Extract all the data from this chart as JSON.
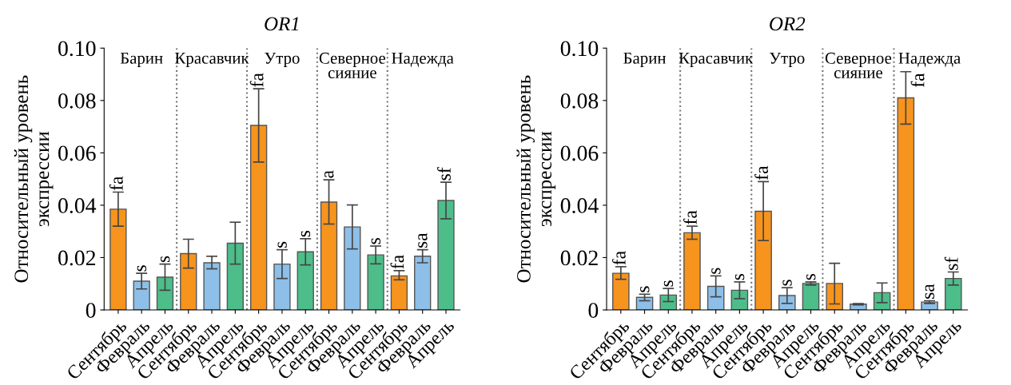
{
  "chart_data": [
    {
      "type": "bar",
      "title": "OR1",
      "ylabel": "Относительный уровень\nэкспрессии",
      "categories": [
        "Сентябрь",
        "Февраль",
        "Апрель",
        "Сентябрь",
        "Февраль",
        "Апрель",
        "Сентябрь",
        "Февраль",
        "Апрель",
        "Сентябрь",
        "Февраль",
        "Апрель",
        "Сентябрь",
        "Февраль",
        "Апрель"
      ],
      "values": [
        0.0385,
        0.011,
        0.0125,
        0.0215,
        0.018,
        0.0255,
        0.0705,
        0.0175,
        0.0222,
        0.0412,
        0.0317,
        0.021,
        0.013,
        0.0205,
        0.0418
      ],
      "colors": [
        "#f7941d",
        "#8dbfe8",
        "#4dbd8a",
        "#f7941d",
        "#8dbfe8",
        "#4dbd8a",
        "#f7941d",
        "#8dbfe8",
        "#4dbd8a",
        "#f7941d",
        "#8dbfe8",
        "#4dbd8a",
        "#f7941d",
        "#8dbfe8",
        "#4dbd8a"
      ],
      "errors": [
        [
          0.032,
          0.045
        ],
        [
          0.008,
          0.014
        ],
        [
          0.0075,
          0.0175
        ],
        [
          0.016,
          0.027
        ],
        [
          0.0157,
          0.0205
        ],
        [
          0.0175,
          0.0335
        ],
        [
          0.0565,
          0.0845
        ],
        [
          0.012,
          0.023
        ],
        [
          0.0172,
          0.0272
        ],
        [
          0.0328,
          0.0497
        ],
        [
          0.0233,
          0.0401
        ],
        [
          0.0176,
          0.0244
        ],
        [
          0.0115,
          0.015
        ],
        [
          0.018,
          0.023
        ],
        [
          0.0348,
          0.0488
        ]
      ],
      "value_labels": [
        "fa",
        "s",
        "s",
        null,
        null,
        null,
        "fa",
        "s",
        "s",
        "a",
        null,
        "s",
        "fa",
        "sa",
        "sf"
      ],
      "annotations": [
        "Барин",
        "Красавчик",
        "Утро",
        "Северное\nсияние",
        "Надежда"
      ],
      "ylim": [
        0,
        0.1
      ],
      "yticks": [
        0,
        0.02,
        0.04,
        0.06,
        0.08,
        {
          "value": 0.1,
          "label": "0.10"
        }
      ],
      "grid": false
    },
    {
      "type": "bar",
      "title": "OR2",
      "ylabel": "Относительный уровень\nэкспрессии",
      "categories": [
        "Сентябрь",
        "Февраль",
        "Апрель",
        "Сентябрь",
        "Февраль",
        "Апрель",
        "Сентябрь",
        "Февраль",
        "Апрель",
        "Сентябрь",
        "Февраль",
        "Апрель",
        "Сентябрь",
        "Февраль",
        "Апрель"
      ],
      "values": [
        0.014,
        0.0048,
        0.0057,
        0.0295,
        0.009,
        0.0075,
        0.0377,
        0.0055,
        0.0101,
        0.0101,
        0.0022,
        0.0066,
        0.081,
        0.003,
        0.012
      ],
      "colors": [
        "#f7941d",
        "#8dbfe8",
        "#4dbd8a",
        "#f7941d",
        "#8dbfe8",
        "#4dbd8a",
        "#f7941d",
        "#8dbfe8",
        "#4dbd8a",
        "#f7941d",
        "#8dbfe8",
        "#4dbd8a",
        "#f7941d",
        "#8dbfe8",
        "#4dbd8a"
      ],
      "errors": [
        [
          0.0117,
          0.0165
        ],
        [
          0.0035,
          0.006
        ],
        [
          0.0032,
          0.0082
        ],
        [
          0.027,
          0.032
        ],
        [
          0.005,
          0.013
        ],
        [
          0.0043,
          0.0107
        ],
        [
          0.0265,
          0.049
        ],
        [
          0.0025,
          0.0085
        ],
        [
          0.0095,
          0.0107
        ],
        [
          0.0023,
          0.0178
        ],
        [
          0.0019,
          0.0024
        ],
        [
          0.0028,
          0.0103
        ],
        [
          0.071,
          0.091
        ],
        [
          0.0025,
          0.0035
        ],
        [
          0.0095,
          0.0145
        ]
      ],
      "value_labels": [
        "fa",
        "s",
        "s",
        "fa",
        "s",
        "s",
        "fa",
        "s",
        "s",
        null,
        null,
        null,
        "fa",
        "sa",
        "sf"
      ],
      "annotations": [
        "Барин",
        "Красавчик",
        "Утро",
        "Северное\nсияние",
        "Надежда"
      ],
      "ylim": [
        0,
        0.1
      ],
      "yticks": [
        0,
        0.02,
        0.04,
        0.06,
        0.08,
        {
          "value": 0.1,
          "label": "0.10"
        }
      ],
      "grid": false
    }
  ]
}
